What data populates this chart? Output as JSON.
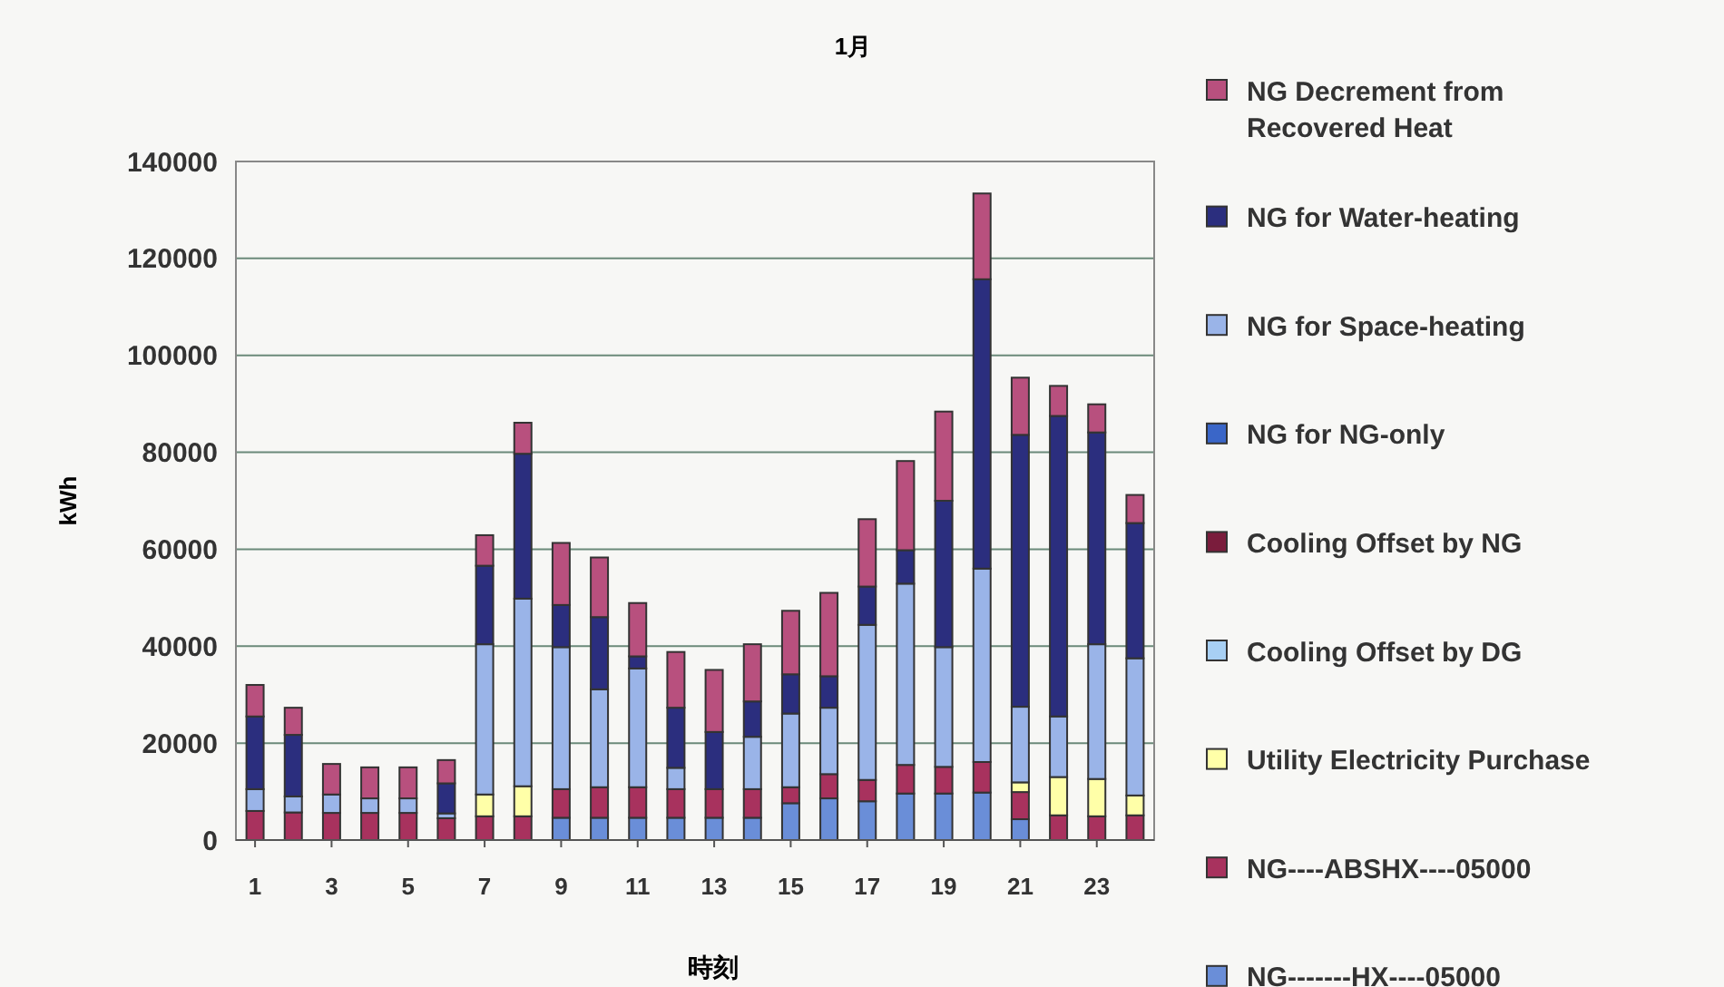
{
  "chart_data": {
    "type": "bar",
    "stacked": true,
    "title": "1月",
    "xlabel": "時刻",
    "ylabel": "kWh",
    "x": [
      1,
      2,
      3,
      4,
      5,
      6,
      7,
      8,
      9,
      10,
      11,
      12,
      13,
      14,
      15,
      16,
      17,
      18,
      19,
      20,
      21,
      22,
      23,
      24
    ],
    "xlim": [
      0.5,
      24.5
    ],
    "xticks": [
      1,
      3,
      5,
      7,
      9,
      11,
      13,
      15,
      17,
      19,
      21,
      23
    ],
    "ylim": [
      0,
      140000
    ],
    "yticks": [
      0,
      20000,
      40000,
      60000,
      80000,
      100000,
      120000,
      140000
    ],
    "grid": "y",
    "legend": "right",
    "series": [
      {
        "name": "NG-------HX----05000",
        "color": "#6a8ed8",
        "values": [
          null,
          null,
          null,
          null,
          null,
          null,
          null,
          null,
          4600,
          4600,
          4600,
          4600,
          4600,
          4600,
          7600,
          8600,
          8000,
          9600,
          9600,
          9800,
          4300,
          null,
          null,
          null
        ]
      },
      {
        "name": "NG----ABSHX----05000",
        "color": "#a8325e",
        "values": [
          6000,
          5700,
          5600,
          5600,
          5600,
          4500,
          4900,
          4900,
          5900,
          6300,
          6300,
          5900,
          5900,
          5900,
          3300,
          5000,
          4400,
          5900,
          5500,
          6300,
          5600,
          5100,
          4900,
          5100
        ]
      },
      {
        "name": "Utility Electricity Purchase",
        "color": "#ffffa8",
        "values": [
          null,
          null,
          null,
          null,
          null,
          null,
          4500,
          6200,
          null,
          null,
          null,
          null,
          null,
          null,
          null,
          null,
          null,
          null,
          null,
          null,
          2000,
          7900,
          7700,
          4100
        ]
      },
      {
        "name": "Cooling Offset by DG",
        "color": "#a8d0f4",
        "values": [
          null,
          null,
          null,
          null,
          null,
          null,
          null,
          null,
          null,
          null,
          null,
          null,
          null,
          null,
          null,
          null,
          null,
          null,
          null,
          null,
          null,
          null,
          null,
          null
        ]
      },
      {
        "name": "Cooling Offset by NG",
        "color": "#7a1c3c",
        "values": [
          null,
          null,
          null,
          null,
          null,
          null,
          null,
          null,
          null,
          null,
          null,
          null,
          null,
          null,
          null,
          null,
          null,
          null,
          null,
          null,
          null,
          null,
          null,
          null
        ]
      },
      {
        "name": "NG for NG-only",
        "color": "#3a66c8",
        "values": [
          null,
          null,
          null,
          null,
          null,
          null,
          null,
          null,
          null,
          null,
          null,
          null,
          null,
          null,
          null,
          null,
          null,
          null,
          null,
          null,
          null,
          null,
          null,
          null
        ]
      },
      {
        "name": "NG for Space-heating",
        "color": "#9ab4e8",
        "values": [
          4500,
          3300,
          3800,
          3000,
          3000,
          1000,
          31000,
          38700,
          29300,
          20200,
          24500,
          4400,
          null,
          10800,
          15200,
          13700,
          32000,
          37400,
          24700,
          39900,
          15600,
          12500,
          27800,
          28300
        ]
      },
      {
        "name": "NG for Water-heating",
        "color": "#2b2e7e",
        "values": [
          15000,
          12700,
          null,
          null,
          null,
          6200,
          16200,
          29900,
          8700,
          14900,
          2500,
          12400,
          11800,
          7300,
          8100,
          6500,
          7900,
          6900,
          30200,
          59700,
          56100,
          62000,
          43700,
          27900
        ]
      },
      {
        "name": "NG Decrement from Recovered Heat",
        "color": "#b8507e",
        "values": [
          6500,
          5600,
          6300,
          6400,
          6400,
          4800,
          6300,
          6400,
          12800,
          12300,
          11000,
          11500,
          12800,
          11800,
          13100,
          17200,
          13900,
          18400,
          18400,
          17700,
          11800,
          6200,
          5800,
          5800
        ]
      }
    ]
  }
}
